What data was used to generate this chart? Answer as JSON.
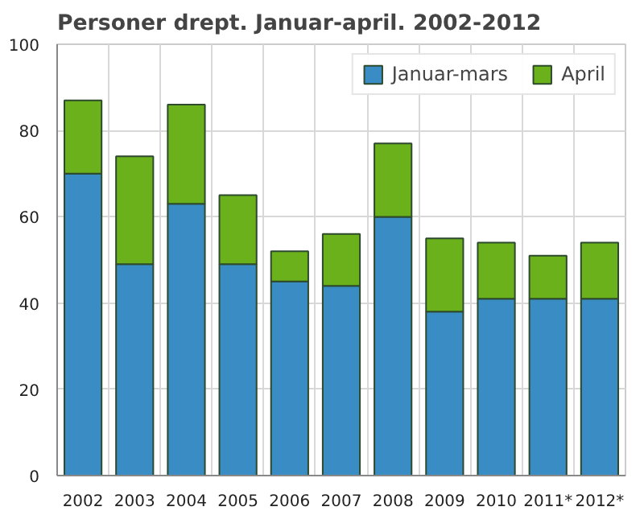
{
  "chart_data": {
    "type": "bar",
    "title": "Personer drept. Januar-april. 2002-2012",
    "categories": [
      "2002",
      "2003",
      "2004",
      "2005",
      "2006",
      "2007",
      "2008",
      "2009",
      "2010",
      "2011*",
      "2012*"
    ],
    "stacked": true,
    "series": [
      {
        "name": "Januar-mars",
        "color": "#3a8cc4",
        "values": [
          70,
          49,
          63,
          49,
          45,
          44,
          60,
          38,
          41,
          41,
          41
        ]
      },
      {
        "name": "April",
        "color": "#6ab11c",
        "values": [
          17,
          25,
          23,
          16,
          7,
          12,
          17,
          17,
          13,
          10,
          13
        ]
      }
    ],
    "ylim": [
      0,
      100
    ],
    "yticks": [
      0,
      20,
      40,
      60,
      80,
      100
    ],
    "grid": true,
    "legend": "top right"
  }
}
